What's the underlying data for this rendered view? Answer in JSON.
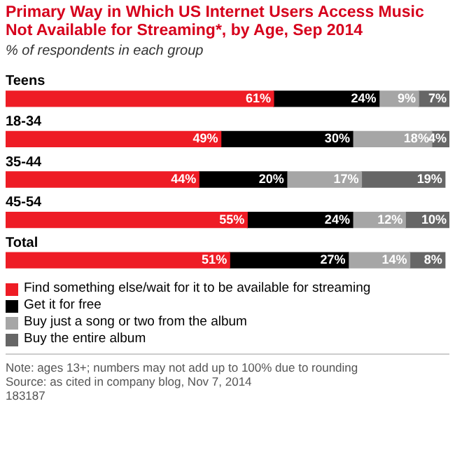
{
  "chart_data": {
    "type": "bar",
    "orientation": "horizontal",
    "stacked": true,
    "title": "Primary Way in Which US Internet Users Access Music Not Available for Streaming*, by Age, Sep 2014",
    "subtitle": "% of respondents in each group",
    "categories": [
      "Teens",
      "18-34",
      "35-44",
      "45-54",
      "Total"
    ],
    "xlim": [
      0,
      101
    ],
    "legend": "bottom",
    "series": [
      {
        "name": "Find something else/wait for it to be available for streaming",
        "color": "#ee1c25",
        "values": [
          61,
          49,
          44,
          55,
          51
        ],
        "value_labels": [
          "61%",
          "49%",
          "44%",
          "55%",
          "51%"
        ]
      },
      {
        "name": "Get it for free",
        "color": "#000000",
        "values": [
          24,
          30,
          20,
          24,
          27
        ],
        "value_labels": [
          "24%",
          "30%",
          "20%",
          "24%",
          "27%"
        ]
      },
      {
        "name": "Buy just a song or two from the album",
        "color": "#a6a6a6",
        "values": [
          9,
          18,
          17,
          12,
          14
        ],
        "value_labels": [
          "9%",
          "18%",
          "17%",
          "12%",
          "14%"
        ]
      },
      {
        "name": "Buy the entire album",
        "color": "#666666",
        "values": [
          7,
          4,
          19,
          10,
          8
        ],
        "value_labels": [
          "7%",
          "4%",
          "19%",
          "10%",
          "8%"
        ]
      }
    ],
    "annotations": [
      "Note: ages 13+; numbers may not add up to 100% due to rounding",
      "Source: as cited in company blog, Nov 7, 2014",
      "183187"
    ]
  }
}
